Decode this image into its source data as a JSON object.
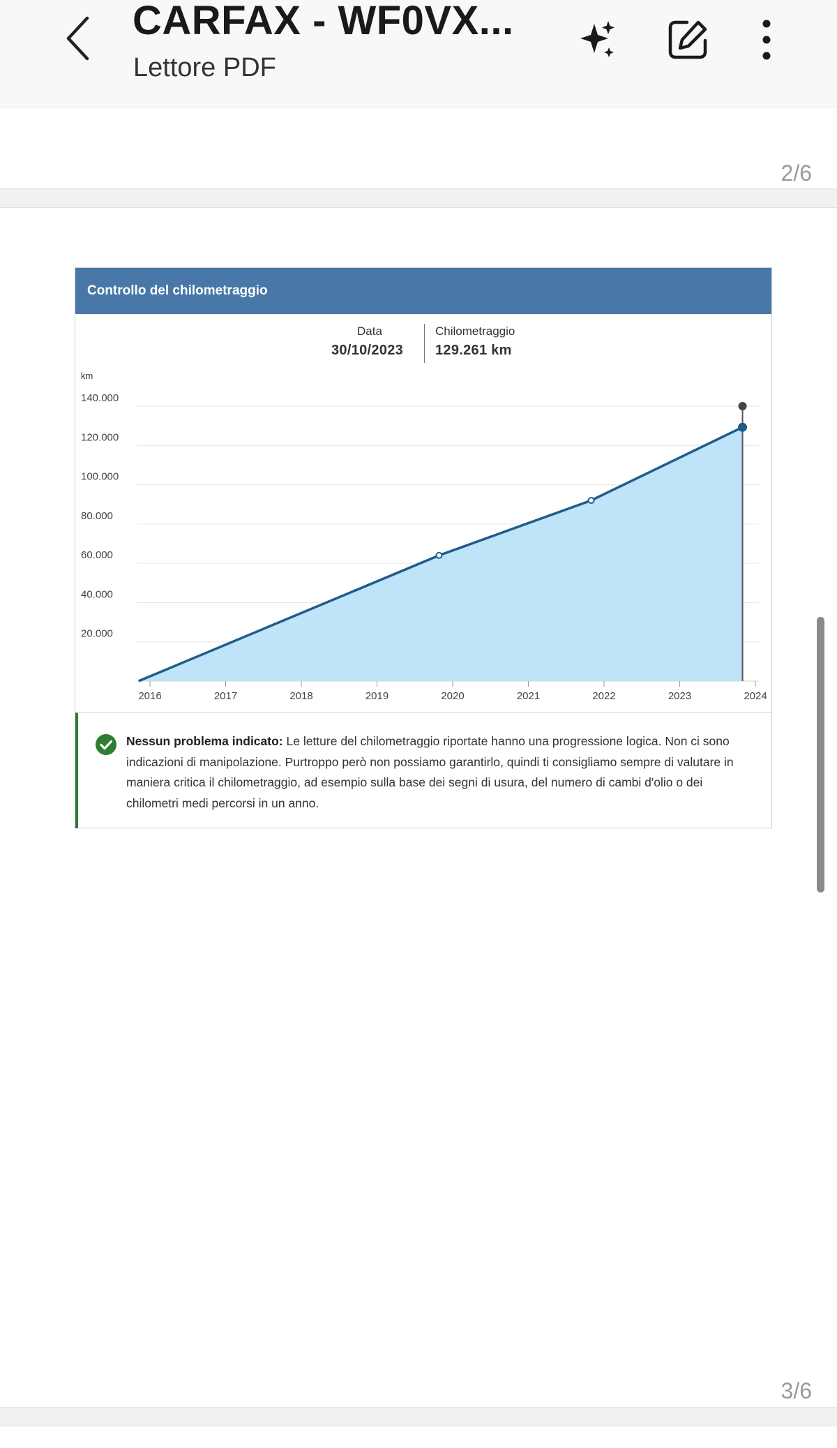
{
  "header": {
    "title": "CARFAX - WF0VX...",
    "subtitle": "Lettore PDF",
    "icons": {
      "back": "chevron-left-icon",
      "ai": "sparkle-icon",
      "edit": "edit-icon",
      "more": "more-vertical-icon"
    }
  },
  "pages": {
    "current_label": "2/6",
    "next_label": "3/6"
  },
  "card": {
    "title": "Controllo del chilometraggio",
    "tooltip": {
      "date_label": "Data",
      "date_value": "30/10/2023",
      "km_label": "Chilometraggio",
      "km_value": "129.261 km"
    },
    "notice": {
      "icon": "check-circle-icon",
      "bold": "Nessun problema indicato:",
      "text": "Le letture del chilometraggio riportate hanno una progressione logica. Non ci sono indicazioni di manipolazione. Purtroppo però non possiamo garantirlo, quindi ti consigliamo sempre di valutare in maniera critica il chilometraggio, ad esempio sulla base dei segni di usura, del numero di cambi d'olio o dei chilometri medi percorsi in un anno."
    }
  },
  "colors": {
    "header_bg": "#4877a8",
    "line": "#1e5c8c",
    "area": "#bfe3f7",
    "success": "#2e7d32"
  },
  "chart_data": {
    "type": "area",
    "ylabel": "km",
    "ylim": [
      0,
      140000
    ],
    "yticks": [
      20000,
      40000,
      60000,
      80000,
      100000,
      120000,
      140000
    ],
    "ytick_labels": [
      "20.000",
      "40.000",
      "60.000",
      "80.000",
      "100.000",
      "120.000",
      "140.000"
    ],
    "xlim": [
      2016,
      2024
    ],
    "xticks": [
      2016,
      2017,
      2018,
      2019,
      2020,
      2021,
      2022,
      2023,
      2024
    ],
    "xtick_labels": [
      "2016",
      "2017",
      "2018",
      "2019",
      "2020",
      "2021",
      "2022",
      "2023",
      "2024"
    ],
    "points": [
      {
        "x": 2015.85,
        "y": 0
      },
      {
        "x": 2019.82,
        "y": 64000
      },
      {
        "x": 2021.83,
        "y": 92000
      },
      {
        "x": 2023.83,
        "y": 129261
      }
    ],
    "highlight": {
      "x": 2023.83,
      "y": 129261,
      "date": "30/10/2023",
      "km": "129.261 km"
    },
    "grid": true
  }
}
